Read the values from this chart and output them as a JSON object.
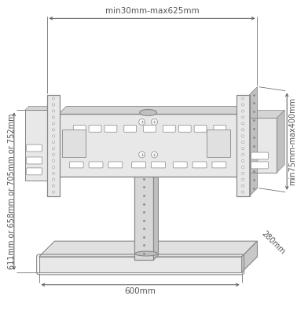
{
  "bg_color": "#ffffff",
  "line_color": "#888888",
  "dim_color": "#555555",
  "figsize": [
    3.78,
    4.0
  ],
  "dpi": 100,
  "annotations": {
    "top_width": "min30mm-max625mm",
    "left_height": "611mm or 658mm or 705mm or 752mm",
    "right_height": "min75mm-max400mm",
    "base_depth": "280mm",
    "base_width": "600mm"
  },
  "colors": {
    "face_light": "#e8e8e8",
    "face_mid": "#d4d4d4",
    "face_dark": "#c0c0c0",
    "face_darker": "#b0b0b0",
    "pole_fill": "#d8d8d8",
    "base_top": "#e0e0e0",
    "base_side": "#c8c8c8"
  }
}
